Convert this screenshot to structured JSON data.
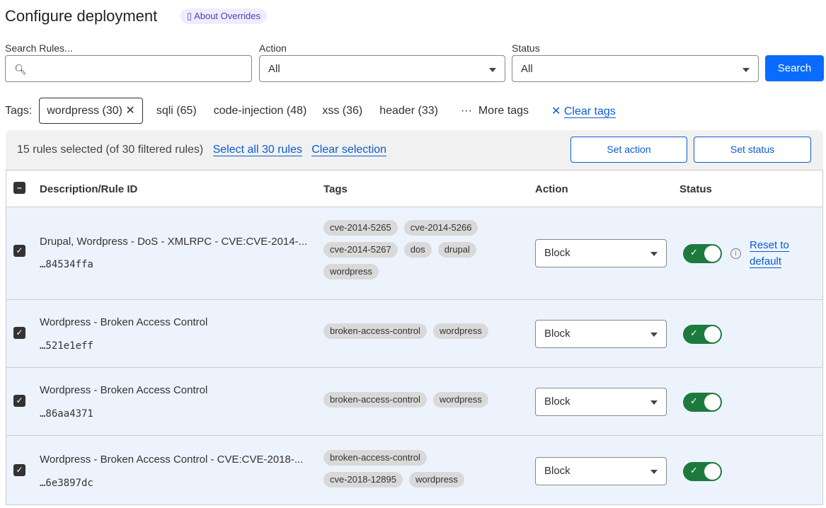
{
  "header": {
    "title": "Configure deployment",
    "about_label": "About Overrides"
  },
  "filters": {
    "search_label": "Search Rules...",
    "search_value": "",
    "action_label": "Action",
    "action_value": "All",
    "status_label": "Status",
    "status_value": "All",
    "search_button": "Search"
  },
  "tags": {
    "label": "Tags:",
    "selected": "wordpress (30)",
    "items": [
      "sqli (65)",
      "code-injection (48)",
      "xss (36)",
      "header (33)"
    ],
    "more": "More tags",
    "clear": "Clear tags"
  },
  "selection": {
    "summary": "15 rules selected (of 30 filtered rules)",
    "select_all": "Select all 30 rules",
    "clear": "Clear selection",
    "set_action": "Set action",
    "set_status": "Set status"
  },
  "table": {
    "columns": [
      "Description/Rule ID",
      "Tags",
      "Action",
      "Status"
    ],
    "rows": [
      {
        "description": "Drupal, Wordpress - DoS - XMLRPC - CVE:CVE-2014-...",
        "id": "…84534ffa",
        "tags": [
          "cve-2014-5265",
          "cve-2014-5266",
          "cve-2014-5267",
          "dos",
          "drupal",
          "wordpress"
        ],
        "action": "Block",
        "enabled": true,
        "reset": "Reset to default"
      },
      {
        "description": "Wordpress - Broken Access Control",
        "id": "…521e1eff",
        "tags": [
          "broken-access-control",
          "wordpress"
        ],
        "action": "Block",
        "enabled": true
      },
      {
        "description": "Wordpress - Broken Access Control",
        "id": "…86aa4371",
        "tags": [
          "broken-access-control",
          "wordpress"
        ],
        "action": "Block",
        "enabled": true
      },
      {
        "description": "Wordpress - Broken Access Control - CVE:CVE-2018-...",
        "id": "…6e3897dc",
        "tags": [
          "broken-access-control",
          "cve-2018-12895",
          "wordpress"
        ],
        "action": "Block",
        "enabled": true
      }
    ]
  },
  "colors": {
    "primary": "#0a6cff",
    "link": "#0a5bd3",
    "toggle_on": "#1d7a3d",
    "row_selected": "#edf3fc"
  }
}
